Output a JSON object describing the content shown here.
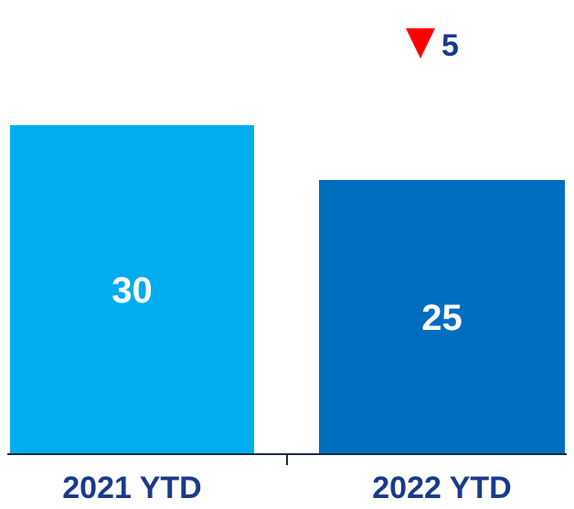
{
  "chart_data": {
    "type": "bar",
    "categories": [
      "2021 YTD",
      "2022 YTD"
    ],
    "values": [
      30,
      25
    ],
    "value_labels": [
      "30",
      "25"
    ],
    "ylim": [
      0,
      36
    ],
    "grid": false,
    "bar_colors": [
      "#00adef",
      "#006ebf"
    ],
    "annotation": {
      "text": "5",
      "icon": "down-triangle-icon",
      "icon_color": "#ff0000",
      "text_color": "#1a3a8a"
    }
  }
}
